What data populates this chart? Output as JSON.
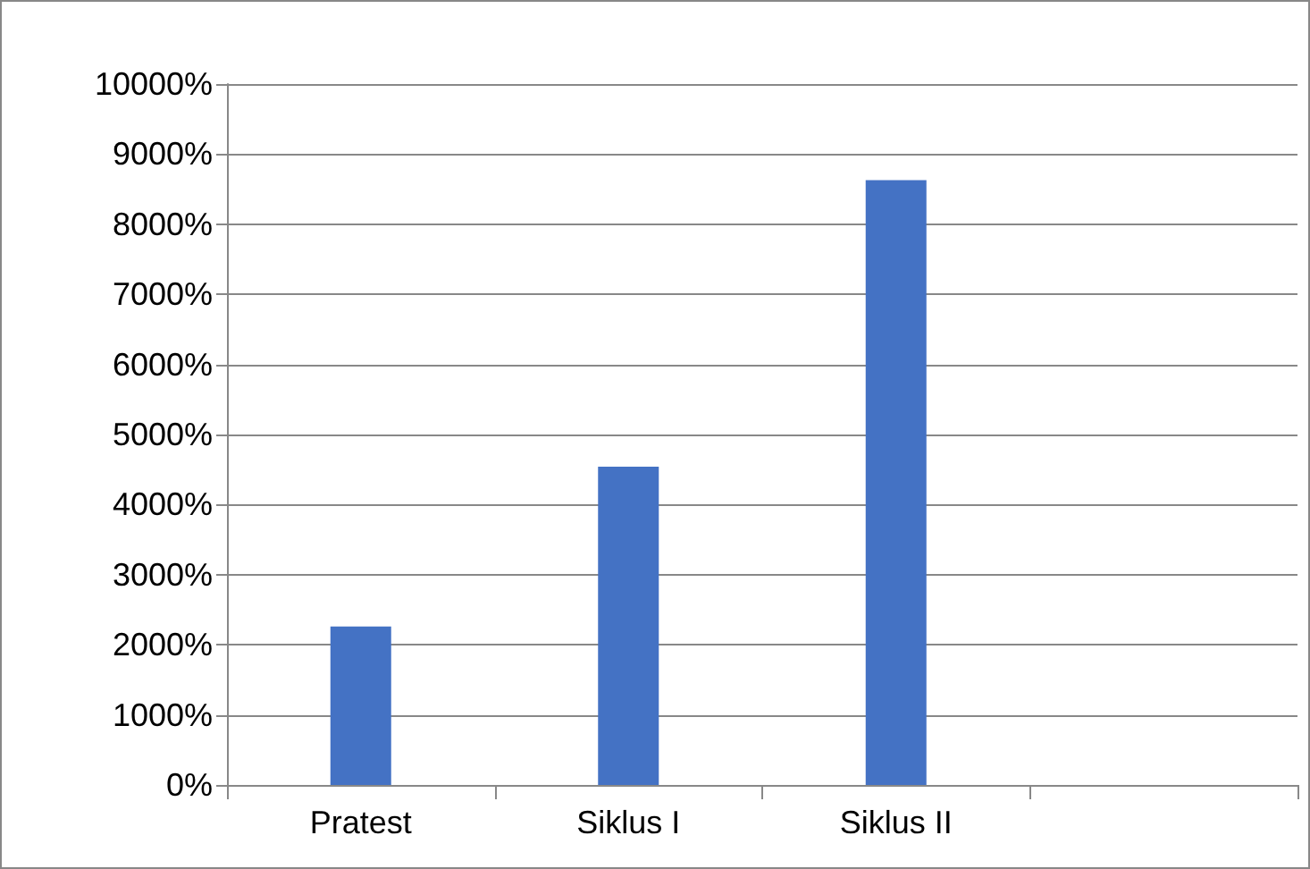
{
  "chart_data": {
    "type": "bar",
    "categories": [
      "Pratest",
      "Siklus I",
      "Siklus II",
      null
    ],
    "values": [
      2260,
      4540,
      8630,
      null
    ],
    "color": "#4472c4",
    "ylim": [
      0,
      10000
    ],
    "yticks": [
      {
        "value": 0,
        "label": "0%"
      },
      {
        "value": 1000,
        "label": "1000%"
      },
      {
        "value": 2000,
        "label": "2000%"
      },
      {
        "value": 3000,
        "label": "3000%"
      },
      {
        "value": 4000,
        "label": "4000%"
      },
      {
        "value": 5000,
        "label": "5000%"
      },
      {
        "value": 6000,
        "label": "6000%"
      },
      {
        "value": 7000,
        "label": "7000%"
      },
      {
        "value": 8000,
        "label": "8000%"
      },
      {
        "value": 9000,
        "label": "9000%"
      },
      {
        "value": 10000,
        "label": "10000%"
      }
    ],
    "grid": "y"
  }
}
